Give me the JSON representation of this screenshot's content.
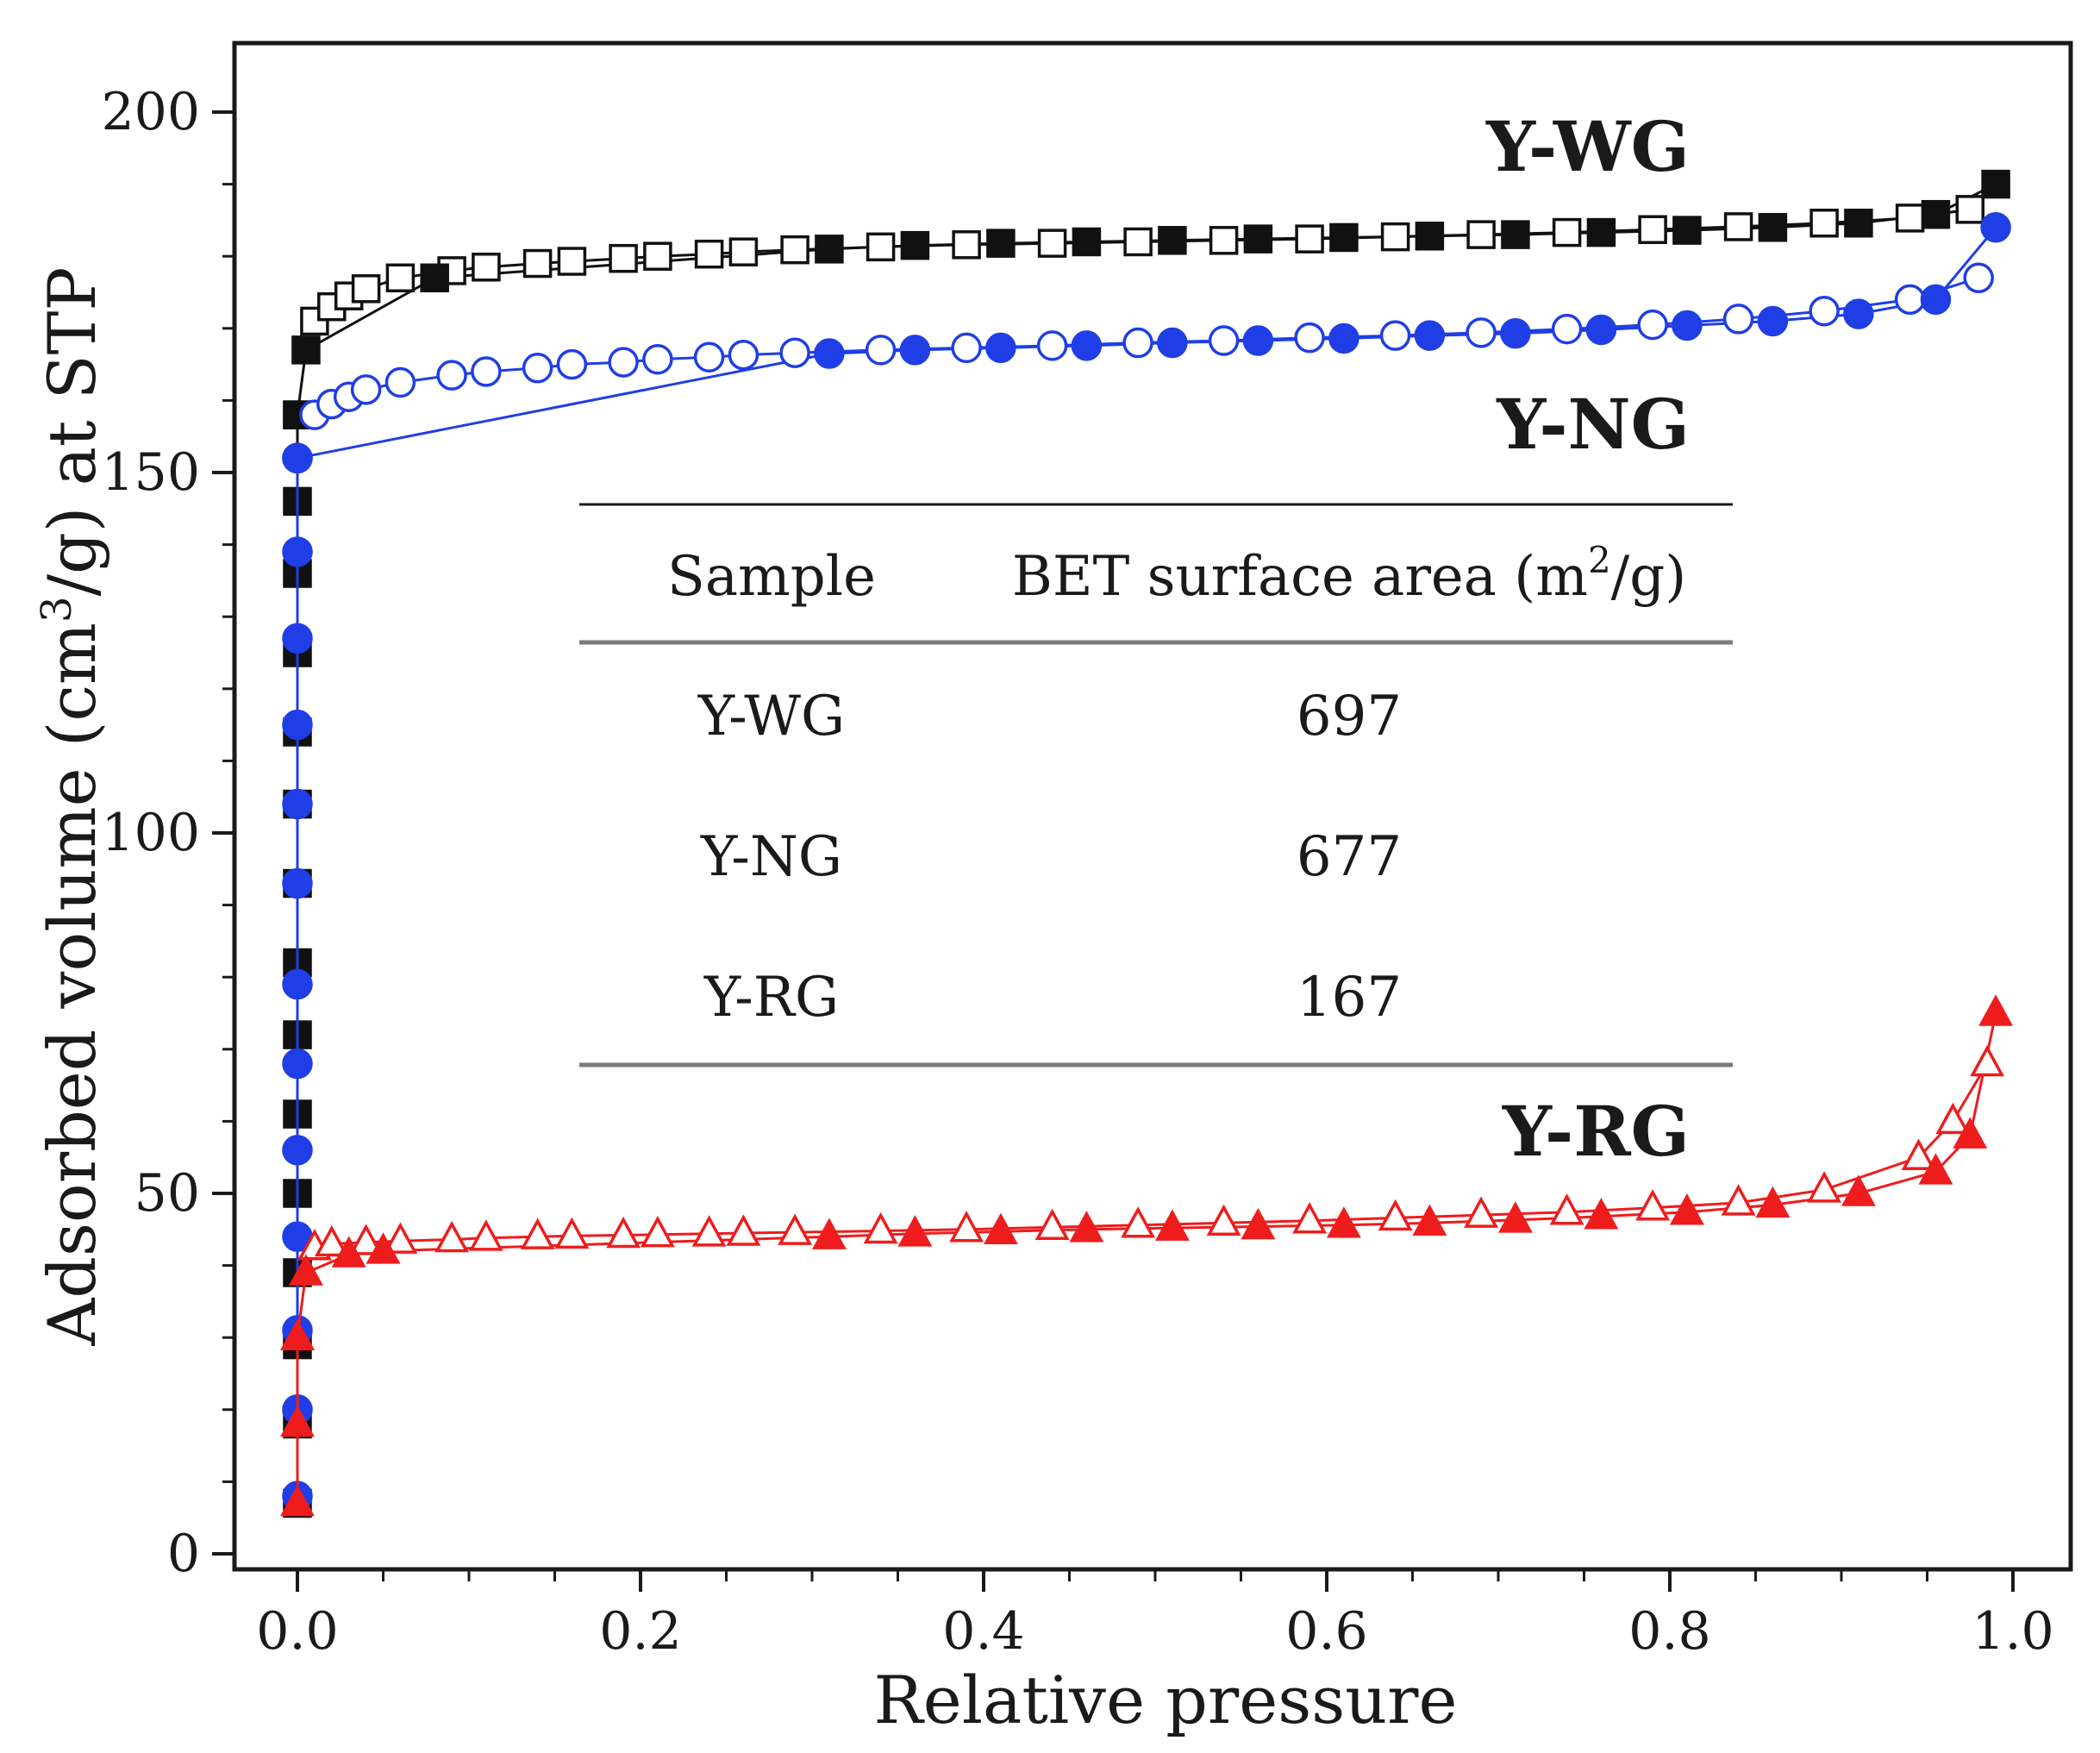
{
  "chart_data": {
    "type": "scatter",
    "title": "",
    "xlabel": "Relative pressure",
    "ylabel_parts": [
      "Adsorbed volume (cm",
      "3",
      "/g) at STP"
    ],
    "xlim": [
      0.0,
      1.0
    ],
    "ylim": [
      0,
      200
    ],
    "x_ticks": [
      0.0,
      0.2,
      0.4,
      0.6,
      0.8,
      1.0
    ],
    "x_tick_labels": [
      "0.0",
      "0.2",
      "0.4",
      "0.6",
      "0.8",
      "1.0"
    ],
    "y_ticks": [
      0,
      50,
      100,
      150,
      200
    ],
    "y_tick_labels": [
      "0",
      "50",
      "100",
      "150",
      "200"
    ],
    "grid": false,
    "series": [
      {
        "name": "Y-WG",
        "color": "#111111",
        "marker": "square",
        "adsorption": {
          "x": [
            0.0,
            0.0,
            0.0,
            0.0,
            0.0,
            0.0,
            0.0,
            0.0,
            0.0,
            0.0,
            0.0,
            0.0,
            0.0,
            0.0,
            0.0,
            0.0,
            0.005,
            0.08,
            0.31,
            0.36,
            0.41,
            0.46,
            0.51,
            0.56,
            0.61,
            0.66,
            0.71,
            0.76,
            0.81,
            0.86,
            0.91,
            0.955,
            0.99
          ],
          "y": [
            7,
            18,
            29,
            39,
            50,
            61,
            72,
            82,
            93,
            104,
            114,
            125,
            136,
            146,
            158,
            158,
            167,
            177,
            181,
            181.5,
            181.8,
            182,
            182.2,
            182.4,
            182.6,
            182.8,
            183,
            183.3,
            183.6,
            184,
            184.6,
            185.8,
            190
          ]
        },
        "desorption": {
          "x": [
            0.01,
            0.02,
            0.03,
            0.04,
            0.06,
            0.09,
            0.11,
            0.14,
            0.16,
            0.19,
            0.21,
            0.24,
            0.26,
            0.29,
            0.34,
            0.39,
            0.44,
            0.49,
            0.54,
            0.59,
            0.64,
            0.69,
            0.74,
            0.79,
            0.84,
            0.89,
            0.94,
            0.975
          ],
          "y": [
            171,
            173,
            174.5,
            175.5,
            177,
            178,
            178.5,
            179,
            179.3,
            179.7,
            180,
            180.3,
            180.6,
            180.9,
            181.3,
            181.6,
            181.8,
            182,
            182.2,
            182.4,
            182.7,
            183,
            183.3,
            183.7,
            184.1,
            184.6,
            185.3,
            186.5
          ]
        }
      },
      {
        "name": "Y-NG",
        "color": "#1f3ee6",
        "marker": "circle",
        "adsorption": {
          "x": [
            0.0,
            0.0,
            0.0,
            0.0,
            0.0,
            0.0,
            0.0,
            0.0,
            0.0,
            0.0,
            0.0,
            0.0,
            0.0,
            0.0,
            0.0,
            0.31,
            0.36,
            0.41,
            0.46,
            0.51,
            0.56,
            0.61,
            0.66,
            0.71,
            0.76,
            0.81,
            0.86,
            0.91,
            0.955,
            0.99
          ],
          "y": [
            8,
            20,
            31,
            44,
            56,
            68,
            79,
            93,
            104,
            115,
            127,
            139,
            152,
            152,
            152,
            166.5,
            167,
            167.3,
            167.6,
            168,
            168.3,
            168.6,
            169,
            169.3,
            169.8,
            170.4,
            171,
            172,
            174,
            184
          ]
        },
        "desorption": {
          "x": [
            0.01,
            0.02,
            0.03,
            0.04,
            0.06,
            0.09,
            0.11,
            0.14,
            0.16,
            0.19,
            0.21,
            0.24,
            0.26,
            0.29,
            0.34,
            0.39,
            0.44,
            0.49,
            0.54,
            0.59,
            0.64,
            0.69,
            0.74,
            0.79,
            0.84,
            0.89,
            0.94,
            0.98
          ],
          "y": [
            158,
            159.5,
            160.5,
            161.5,
            162.5,
            163.5,
            164,
            164.5,
            165,
            165.3,
            165.7,
            166,
            166.3,
            166.6,
            167,
            167.3,
            167.6,
            168,
            168.3,
            168.7,
            169,
            169.4,
            169.9,
            170.5,
            171.3,
            172.4,
            174,
            177
          ]
        }
      },
      {
        "name": "Y-RG",
        "color": "#ee1c1c",
        "marker": "triangle",
        "adsorption": {
          "x": [
            0.0,
            0.0,
            0.0,
            0.0,
            0.0,
            0.005,
            0.03,
            0.05,
            0.31,
            0.36,
            0.41,
            0.46,
            0.51,
            0.56,
            0.61,
            0.66,
            0.71,
            0.76,
            0.81,
            0.86,
            0.91,
            0.955,
            0.975,
            0.99
          ],
          "y": [
            7,
            18,
            30,
            30,
            30,
            39,
            41.5,
            42,
            44,
            44.4,
            44.7,
            45,
            45.2,
            45.4,
            45.6,
            45.9,
            46.3,
            46.8,
            47.4,
            48.4,
            50,
            53,
            58,
            75
          ]
        },
        "desorption": {
          "x": [
            0.01,
            0.02,
            0.04,
            0.06,
            0.09,
            0.11,
            0.14,
            0.16,
            0.19,
            0.21,
            0.24,
            0.26,
            0.29,
            0.34,
            0.39,
            0.44,
            0.49,
            0.54,
            0.59,
            0.64,
            0.69,
            0.74,
            0.79,
            0.84,
            0.89,
            0.945,
            0.965,
            0.985
          ],
          "y": [
            42.5,
            43,
            43.2,
            43.4,
            43.6,
            43.8,
            44,
            44.1,
            44.2,
            44.3,
            44.4,
            44.5,
            44.6,
            44.8,
            45,
            45.3,
            45.6,
            45.9,
            46.2,
            46.6,
            47,
            47.4,
            48,
            48.7,
            50.5,
            55,
            60,
            68
          ]
        }
      }
    ],
    "annotations": [
      {
        "text": "Y-WG",
        "series": "Y-WG"
      },
      {
        "text": "Y-NG",
        "series": "Y-NG"
      },
      {
        "text": "Y-RG",
        "series": "Y-RG"
      }
    ],
    "inset_table": {
      "headers": [
        "Sample",
        "BET surface area (m",
        "2",
        "/g)"
      ],
      "rows": [
        {
          "sample": "Y-WG",
          "value": "697"
        },
        {
          "sample": "Y-NG",
          "value": "677"
        },
        {
          "sample": "Y-RG",
          "value": "167"
        }
      ]
    }
  }
}
